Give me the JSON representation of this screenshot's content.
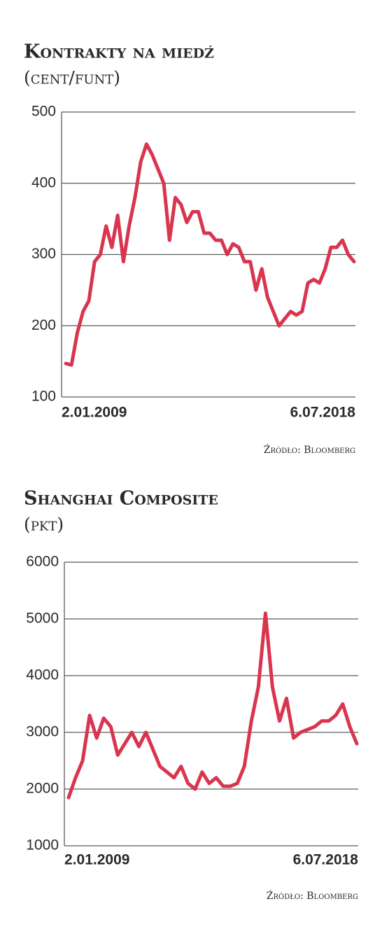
{
  "chart_data": [
    {
      "type": "line",
      "title": "Kontrakty na miedź",
      "subtitle": "(cent/funt)",
      "categories": [
        "2.01.2009",
        null,
        null,
        null,
        null,
        null,
        null,
        null,
        null,
        null,
        null,
        null,
        null,
        null,
        null,
        null,
        null,
        null,
        null,
        null,
        null,
        null,
        null,
        null,
        null,
        null,
        null,
        null,
        null,
        null,
        null,
        null,
        null,
        null,
        null,
        null,
        null,
        null,
        null,
        null,
        null,
        null,
        null,
        null,
        null,
        null,
        null,
        null,
        null,
        null,
        "6.07.2018"
      ],
      "series": [
        {
          "name": "Kontrakty na miedź",
          "color": "#d9354f",
          "values": [
            147,
            145,
            190,
            220,
            235,
            290,
            300,
            340,
            310,
            355,
            290,
            340,
            380,
            430,
            455,
            440,
            420,
            400,
            320,
            380,
            370,
            345,
            360,
            360,
            330,
            330,
            320,
            320,
            300,
            315,
            310,
            290,
            290,
            250,
            280,
            240,
            220,
            200,
            210,
            220,
            215,
            220,
            260,
            265,
            260,
            280,
            310,
            310,
            320,
            300,
            290
          ]
        }
      ],
      "ylim": [
        100,
        500
      ],
      "yticks": [
        100,
        200,
        300,
        400,
        500
      ],
      "grid": true,
      "source": "Źródło: Bloomberg"
    },
    {
      "type": "line",
      "title": "Shanghai Composite",
      "subtitle": "(pkt)",
      "categories": [
        "2.01.2009",
        null,
        null,
        null,
        null,
        null,
        null,
        null,
        null,
        null,
        null,
        null,
        null,
        null,
        null,
        null,
        null,
        null,
        null,
        null,
        null,
        null,
        null,
        null,
        null,
        null,
        null,
        null,
        null,
        null,
        null,
        null,
        null,
        null,
        null,
        null,
        null,
        null,
        null,
        null,
        null,
        "6.07.2018"
      ],
      "series": [
        {
          "name": "Shanghai Composite",
          "color": "#d9354f",
          "values": [
            1850,
            2200,
            2500,
            3300,
            2900,
            3250,
            3100,
            2600,
            2800,
            3000,
            2750,
            3000,
            2700,
            2400,
            2300,
            2200,
            2400,
            2100,
            2000,
            2300,
            2100,
            2200,
            2050,
            2050,
            2100,
            2400,
            3200,
            3800,
            5100,
            3800,
            3200,
            3600,
            2900,
            3000,
            3050,
            3100,
            3200,
            3200,
            3300,
            3500,
            3100,
            2800
          ]
        }
      ],
      "ylim": [
        1000,
        6000
      ],
      "yticks": [
        1000,
        2000,
        3000,
        4000,
        5000,
        6000
      ],
      "grid": true,
      "source": "Źródło: Bloomberg"
    }
  ]
}
